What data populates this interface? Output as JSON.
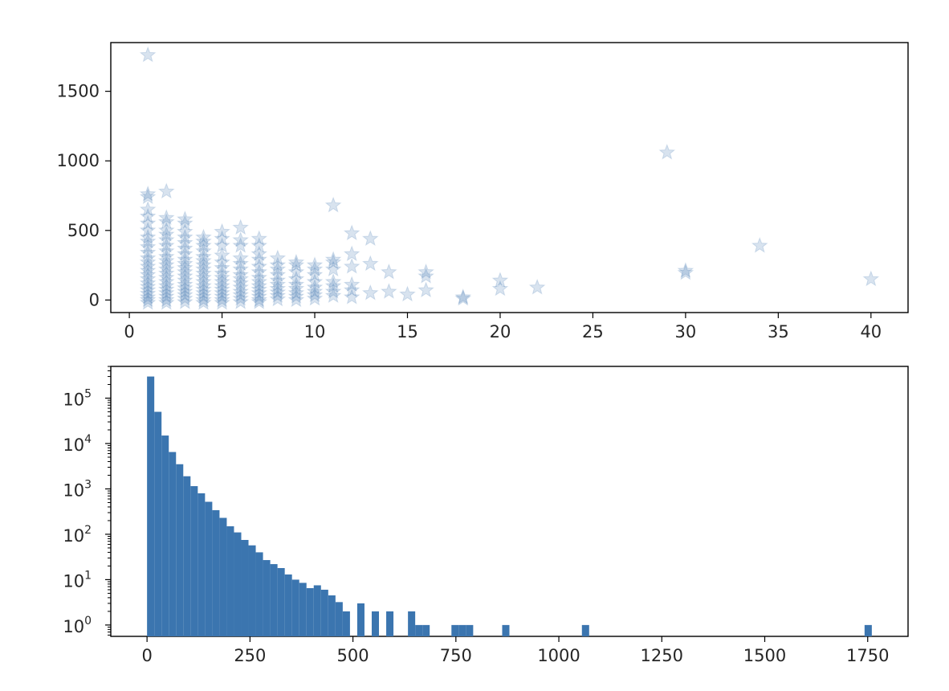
{
  "chart_data": [
    {
      "type": "scatter",
      "marker": "star",
      "color": "#3b75af",
      "alpha": 0.2,
      "xlim": [
        -1,
        42
      ],
      "ylim": [
        -90,
        1850
      ],
      "x_ticks": [
        0,
        5,
        10,
        15,
        20,
        25,
        30,
        35,
        40
      ],
      "x_tick_labels": [
        "0",
        "5",
        "10",
        "15",
        "20",
        "25",
        "30",
        "35",
        "40"
      ],
      "y_ticks": [
        0,
        500,
        1000,
        1500
      ],
      "y_tick_labels": [
        "0",
        "500",
        "1000",
        "1500"
      ],
      "grid": false,
      "points": [
        [
          1,
          1760
        ],
        [
          1,
          760
        ],
        [
          1,
          740
        ],
        [
          1,
          650
        ],
        [
          1,
          600
        ],
        [
          1,
          550
        ],
        [
          1,
          500
        ],
        [
          1,
          450
        ],
        [
          1,
          420
        ],
        [
          1,
          380
        ],
        [
          1,
          340
        ],
        [
          1,
          300
        ],
        [
          1,
          270
        ],
        [
          1,
          240
        ],
        [
          1,
          210
        ],
        [
          1,
          180
        ],
        [
          1,
          150
        ],
        [
          1,
          120
        ],
        [
          1,
          95
        ],
        [
          1,
          70
        ],
        [
          1,
          45
        ],
        [
          1,
          20
        ],
        [
          1,
          0
        ],
        [
          1,
          -20
        ],
        [
          2,
          780
        ],
        [
          2,
          590
        ],
        [
          2,
          560
        ],
        [
          2,
          500
        ],
        [
          2,
          470
        ],
        [
          2,
          430
        ],
        [
          2,
          390
        ],
        [
          2,
          350
        ],
        [
          2,
          310
        ],
        [
          2,
          280
        ],
        [
          2,
          250
        ],
        [
          2,
          220
        ],
        [
          2,
          190
        ],
        [
          2,
          160
        ],
        [
          2,
          130
        ],
        [
          2,
          100
        ],
        [
          2,
          75
        ],
        [
          2,
          50
        ],
        [
          2,
          25
        ],
        [
          2,
          0
        ],
        [
          2,
          -20
        ],
        [
          3,
          580
        ],
        [
          3,
          550
        ],
        [
          3,
          490
        ],
        [
          3,
          450
        ],
        [
          3,
          410
        ],
        [
          3,
          370
        ],
        [
          3,
          330
        ],
        [
          3,
          290
        ],
        [
          3,
          260
        ],
        [
          3,
          230
        ],
        [
          3,
          200
        ],
        [
          3,
          170
        ],
        [
          3,
          140
        ],
        [
          3,
          110
        ],
        [
          3,
          85
        ],
        [
          3,
          60
        ],
        [
          3,
          35
        ],
        [
          3,
          10
        ],
        [
          3,
          -15
        ],
        [
          4,
          450
        ],
        [
          4,
          420
        ],
        [
          4,
          390
        ],
        [
          4,
          350
        ],
        [
          4,
          310
        ],
        [
          4,
          280
        ],
        [
          4,
          250
        ],
        [
          4,
          220
        ],
        [
          4,
          190
        ],
        [
          4,
          160
        ],
        [
          4,
          130
        ],
        [
          4,
          100
        ],
        [
          4,
          75
        ],
        [
          4,
          50
        ],
        [
          4,
          25
        ],
        [
          4,
          0
        ],
        [
          4,
          -20
        ],
        [
          5,
          490
        ],
        [
          5,
          440
        ],
        [
          5,
          390
        ],
        [
          5,
          320
        ],
        [
          5,
          270
        ],
        [
          5,
          230
        ],
        [
          5,
          190
        ],
        [
          5,
          160
        ],
        [
          5,
          130
        ],
        [
          5,
          100
        ],
        [
          5,
          75
        ],
        [
          5,
          50
        ],
        [
          5,
          25
        ],
        [
          5,
          0
        ],
        [
          5,
          -20
        ],
        [
          6,
          520
        ],
        [
          6,
          430
        ],
        [
          6,
          390
        ],
        [
          6,
          300
        ],
        [
          6,
          260
        ],
        [
          6,
          220
        ],
        [
          6,
          180
        ],
        [
          6,
          150
        ],
        [
          6,
          120
        ],
        [
          6,
          90
        ],
        [
          6,
          60
        ],
        [
          6,
          35
        ],
        [
          6,
          10
        ],
        [
          6,
          -15
        ],
        [
          7,
          440
        ],
        [
          7,
          390
        ],
        [
          7,
          330
        ],
        [
          7,
          290
        ],
        [
          7,
          240
        ],
        [
          7,
          200
        ],
        [
          7,
          160
        ],
        [
          7,
          130
        ],
        [
          7,
          100
        ],
        [
          7,
          75
        ],
        [
          7,
          50
        ],
        [
          7,
          25
        ],
        [
          7,
          0
        ],
        [
          7,
          -15
        ],
        [
          8,
          300
        ],
        [
          8,
          250
        ],
        [
          8,
          220
        ],
        [
          8,
          180
        ],
        [
          8,
          140
        ],
        [
          8,
          110
        ],
        [
          8,
          80
        ],
        [
          8,
          55
        ],
        [
          8,
          30
        ],
        [
          8,
          5
        ],
        [
          9,
          270
        ],
        [
          9,
          250
        ],
        [
          9,
          200
        ],
        [
          9,
          150
        ],
        [
          9,
          110
        ],
        [
          9,
          80
        ],
        [
          9,
          50
        ],
        [
          9,
          25
        ],
        [
          9,
          0
        ],
        [
          10,
          250
        ],
        [
          10,
          220
        ],
        [
          10,
          180
        ],
        [
          10,
          130
        ],
        [
          10,
          90
        ],
        [
          10,
          60
        ],
        [
          10,
          35
        ],
        [
          10,
          10
        ],
        [
          11,
          680
        ],
        [
          11,
          290
        ],
        [
          11,
          270
        ],
        [
          11,
          220
        ],
        [
          11,
          130
        ],
        [
          11,
          100
        ],
        [
          11,
          60
        ],
        [
          11,
          30
        ],
        [
          12,
          480
        ],
        [
          12,
          330
        ],
        [
          12,
          240
        ],
        [
          12,
          110
        ],
        [
          12,
          70
        ],
        [
          12,
          20
        ],
        [
          13,
          440
        ],
        [
          13,
          260
        ],
        [
          13,
          50
        ],
        [
          14,
          200
        ],
        [
          14,
          60
        ],
        [
          15,
          40
        ],
        [
          16,
          200
        ],
        [
          16,
          170
        ],
        [
          16,
          70
        ],
        [
          18,
          20
        ],
        [
          18,
          10
        ],
        [
          20,
          140
        ],
        [
          20,
          80
        ],
        [
          22,
          90
        ],
        [
          29,
          1060
        ],
        [
          30,
          210
        ],
        [
          30,
          195
        ],
        [
          34,
          390
        ],
        [
          40,
          150
        ]
      ]
    },
    {
      "type": "bar",
      "subtype": "histogram",
      "y_scale": "log",
      "color": "#3b75af",
      "bin_width": 17.6,
      "bin_start": 0,
      "xlim": [
        -88,
        1848
      ],
      "ylim_log10": [
        -0.25,
        5.7
      ],
      "x_ticks": [
        0,
        250,
        500,
        750,
        1000,
        1250,
        1500,
        1750
      ],
      "x_tick_labels": [
        "0",
        "250",
        "500",
        "750",
        "1000",
        "1250",
        "1500",
        "1750"
      ],
      "y_ticks": [
        {
          "base": "10",
          "exp": "0",
          "value": 1
        },
        {
          "base": "10",
          "exp": "1",
          "value": 10
        },
        {
          "base": "10",
          "exp": "2",
          "value": 100
        },
        {
          "base": "10",
          "exp": "3",
          "value": 1000
        },
        {
          "base": "10",
          "exp": "4",
          "value": 10000
        },
        {
          "base": "10",
          "exp": "5",
          "value": 100000
        }
      ],
      "counts": [
        300000,
        50000,
        15000,
        6500,
        3500,
        1900,
        1150,
        800,
        520,
        340,
        230,
        150,
        110,
        75,
        57,
        40,
        27,
        22,
        18,
        13,
        10,
        8.5,
        6.5,
        7.5,
        6,
        4.5,
        3.2,
        2,
        0,
        3,
        0,
        2,
        0,
        2,
        0,
        0,
        2,
        0,
        0,
        0,
        0,
        0,
        0,
        0,
        0,
        0,
        0,
        0,
        0,
        1,
        0,
        0,
        0,
        0,
        0,
        0,
        0,
        0,
        0,
        0,
        0,
        0,
        0,
        0,
        0,
        0,
        0,
        0,
        0,
        0,
        0,
        0,
        0,
        0,
        0,
        0,
        0,
        0,
        0,
        0,
        0,
        0,
        0,
        0,
        0,
        0,
        0,
        0,
        0,
        0,
        0,
        0,
        0,
        0,
        0,
        0,
        0,
        0,
        0,
        0
      ],
      "extra_counts": {
        "1": [
          37,
          38,
          42,
          43,
          44,
          60,
          99
        ]
      },
      "grid": false
    }
  ]
}
